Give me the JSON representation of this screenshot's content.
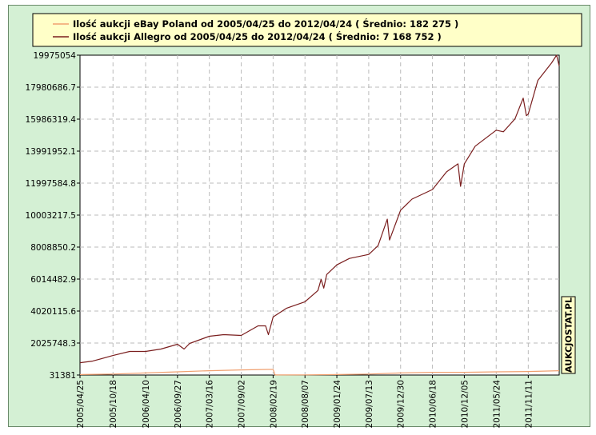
{
  "chart_data": {
    "type": "line",
    "title": "",
    "xlabel": "",
    "ylabel": "",
    "ylim": [
      31381,
      19975054
    ],
    "y_ticks": [
      "19975054",
      "17980686.7",
      "15986319.4",
      "13991952.1",
      "11997584.8",
      "10003217.5",
      "8008850.2",
      "6014482.9",
      "4020115.6",
      "2025748.3",
      "31381"
    ],
    "x_ticks": [
      "2005/04/25",
      "2005/10/18",
      "2006/04/10",
      "2006/09/27",
      "2007/03/16",
      "2007/09/02",
      "2008/02/19",
      "2008/08/07",
      "2009/01/24",
      "2009/07/13",
      "2009/12/30",
      "2010/06/18",
      "2010/12/05",
      "2011/05/24",
      "2011/11/11"
    ],
    "x_range": [
      "2005/04/25",
      "2012/04/24"
    ],
    "grid": true,
    "legend_position": "top",
    "series": [
      {
        "name": "Ilość aukcji eBay Poland od 2005/04/25 do 2012/04/24 ( Średnio:  182 275 )",
        "color": "#f0a070",
        "x": [
          "2005/04/25",
          "2005/10/18",
          "2006/04/10",
          "2006/09/27",
          "2007/03/16",
          "2007/09/02",
          "2008/01/20",
          "2008/02/19",
          "2008/03/01",
          "2008/08/07",
          "2009/01/24",
          "2009/07/13",
          "2009/12/30",
          "2010/06/18",
          "2010/12/05",
          "2011/05/24",
          "2011/11/11",
          "2012/04/24"
        ],
        "values": [
          60000,
          90000,
          160000,
          230000,
          300000,
          350000,
          380000,
          380000,
          35000,
          40000,
          60000,
          90000,
          160000,
          200000,
          200000,
          230000,
          250000,
          300000
        ]
      },
      {
        "name": "Ilość aukcji Allegro od 2005/04/25 do 2012/04/24 ( Średnio:  7 168 752 )",
        "color": "#7a1e1e",
        "x": [
          "2005/04/25",
          "2005/07/01",
          "2005/10/18",
          "2006/01/15",
          "2006/04/10",
          "2006/07/01",
          "2006/09/27",
          "2006/11/01",
          "2006/12/01",
          "2007/03/16",
          "2007/06/01",
          "2007/09/02",
          "2007/12/01",
          "2008/01/10",
          "2008/01/25",
          "2008/02/19",
          "2008/05/01",
          "2008/08/07",
          "2008/10/15",
          "2008/11/01",
          "2008/11/15",
          "2008/12/01",
          "2009/01/24",
          "2009/04/01",
          "2009/07/13",
          "2009/09/01",
          "2009/10/20",
          "2009/11/01",
          "2009/12/30",
          "2010/03/01",
          "2010/06/18",
          "2010/09/01",
          "2010/11/01",
          "2010/11/15",
          "2010/12/05",
          "2011/02/01",
          "2011/05/24",
          "2011/07/01",
          "2011/09/01",
          "2011/10/15",
          "2011/11/01",
          "2011/11/11",
          "2012/01/01",
          "2012/03/15",
          "2012/04/10",
          "2012/04/24"
        ],
        "values": [
          800000,
          900000,
          1250000,
          1500000,
          1500000,
          1650000,
          1950000,
          1650000,
          2000000,
          2450000,
          2550000,
          2500000,
          3100000,
          3100000,
          2550000,
          3650000,
          4200000,
          4600000,
          5300000,
          6000000,
          5450000,
          6300000,
          6900000,
          7300000,
          7550000,
          8100000,
          9750000,
          8450000,
          10300000,
          11000000,
          11600000,
          12700000,
          13200000,
          11800000,
          13200000,
          14300000,
          15300000,
          15200000,
          16000000,
          17300000,
          16200000,
          16300000,
          18400000,
          19500000,
          19975054,
          19300000
        ]
      }
    ]
  },
  "watermark": "AUKCJOSTAT.PL"
}
